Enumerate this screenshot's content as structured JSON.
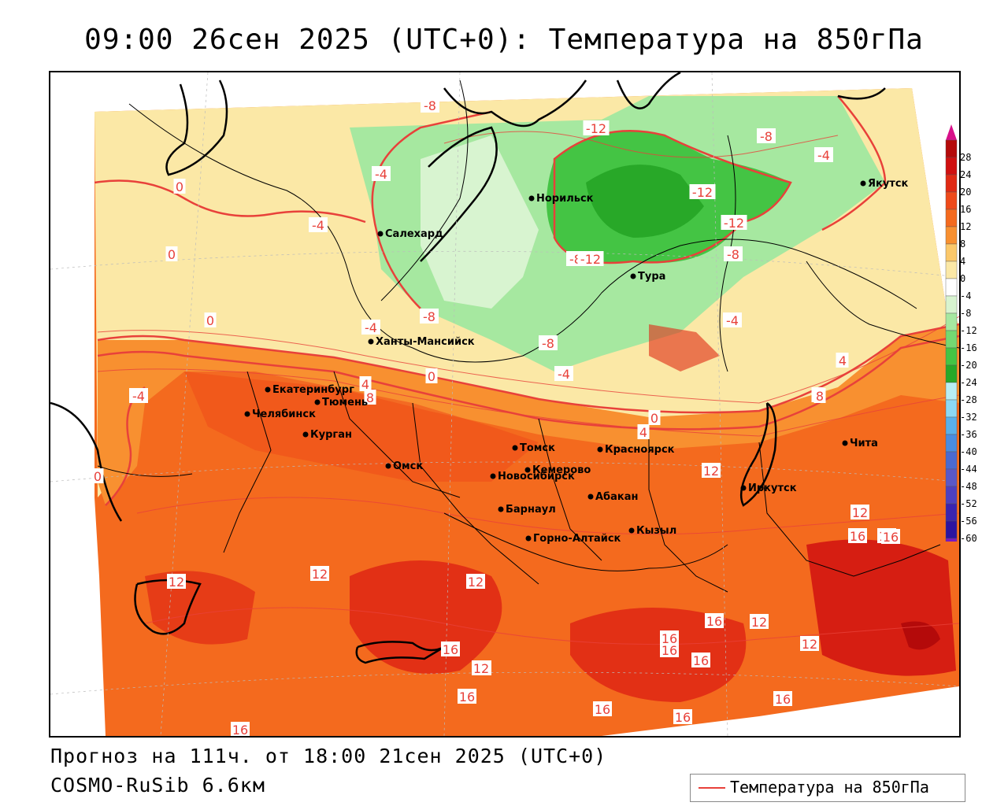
{
  "title": "09:00 26сен 2025 (UTC+0): Температура на 850гПа",
  "forecast_line": "Прогноз на 111ч. от 18:00 21сен 2025 (UTC+0)",
  "model_line": "COSMO-RuSib 6.6км",
  "legend_label": "Температура на 850гПа",
  "colorbar": {
    "labels": [
      "28",
      "24",
      "20",
      "16",
      "12",
      "8",
      "4",
      "0",
      "-4",
      "-8",
      "-12",
      "-16",
      "-20",
      "-24",
      "-28",
      "-32",
      "-36",
      "-40",
      "-44",
      "-48",
      "-52",
      "-56",
      "-60"
    ],
    "colors": [
      "#b40a0a",
      "#d01010",
      "#e02a14",
      "#ee4a1a",
      "#f46a1e",
      "#f89030",
      "#fbc86a",
      "#fbe8a6",
      "#ffffff",
      "#d8f4d0",
      "#a6e8a0",
      "#74d872",
      "#44c444",
      "#28a828",
      "#b8eef4",
      "#8cd8f4",
      "#5ab0ea",
      "#4a8ce0",
      "#4a6ad0",
      "#5a58c8",
      "#4e40c0",
      "#3a24b0",
      "#2c14a0",
      "#7a18c0"
    ],
    "under_color": "#8a1ab8",
    "over_color": "#d8108a"
  },
  "isotherm_labels": [
    {
      "text": "-8"
    },
    {
      "text": "-12"
    },
    {
      "text": "-8"
    },
    {
      "text": "-4"
    },
    {
      "text": "-4"
    },
    {
      "text": "-12"
    },
    {
      "text": "-12"
    },
    {
      "text": "-8"
    },
    {
      "text": "-8"
    },
    {
      "text": "-12"
    },
    {
      "text": "0"
    },
    {
      "text": "-4"
    },
    {
      "text": "0"
    },
    {
      "text": "0"
    },
    {
      "text": "-4"
    },
    {
      "text": "-8"
    },
    {
      "text": "-8"
    },
    {
      "text": "-4"
    },
    {
      "text": "-4"
    },
    {
      "text": "0"
    },
    {
      "text": "4"
    },
    {
      "text": "8"
    },
    {
      "text": "-4"
    },
    {
      "text": "4"
    },
    {
      "text": "0"
    },
    {
      "text": "4"
    },
    {
      "text": "8"
    },
    {
      "text": "12"
    },
    {
      "text": "12"
    },
    {
      "text": "12"
    },
    {
      "text": "16"
    },
    {
      "text": "0"
    },
    {
      "text": "12"
    },
    {
      "text": "12"
    },
    {
      "text": "12"
    },
    {
      "text": "16"
    },
    {
      "text": "12"
    },
    {
      "text": "16"
    },
    {
      "text": "16"
    },
    {
      "text": "12"
    },
    {
      "text": "16"
    },
    {
      "text": "12"
    },
    {
      "text": "16"
    },
    {
      "text": "16"
    },
    {
      "text": "16"
    },
    {
      "text": "16"
    },
    {
      "text": "16"
    },
    {
      "text": "4"
    },
    {
      "text": "8"
    },
    {
      "text": "16"
    },
    {
      "text": "16"
    },
    {
      "text": "12"
    }
  ],
  "cities": [
    "Якутск",
    "Норильск",
    "Салехард",
    "Тура",
    "Ханты-Мансийск",
    "Екатеринбург",
    "Тюмень",
    "Челябинск",
    "Курган",
    "Омск",
    "Новосибирск",
    "Томск",
    "Кемерово",
    "Красноярск",
    "Барнаул",
    "Абакан",
    "Горно-Алтайск",
    "Кызыл",
    "Иркутск",
    "Чита"
  ]
}
